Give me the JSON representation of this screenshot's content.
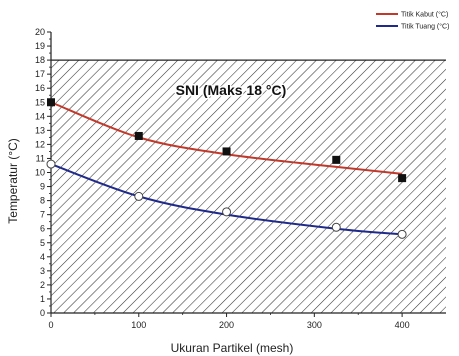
{
  "chart_data": {
    "type": "scatter",
    "xlabel": "Ukuran Partikel (mesh)",
    "ylabel": "Temperatur (°C)",
    "xlim": [
      0,
      450
    ],
    "ylim": [
      0,
      20
    ],
    "x_ticks": [
      "0",
      "100",
      "200",
      "300",
      "400"
    ],
    "y_ticks": [
      "0",
      "1",
      "2",
      "3",
      "4",
      "5",
      "6",
      "7",
      "8",
      "9",
      "10",
      "11",
      "12",
      "13",
      "14",
      "15",
      "16",
      "17",
      "18",
      "19",
      "20"
    ],
    "annotation": {
      "text": "SNI (Maks 18 °C)",
      "x": 205,
      "y": 15.5
    },
    "sni_region": {
      "ymax": 18,
      "pattern": "diagonal-hatch"
    },
    "grid": false,
    "legend": "top-right",
    "series": [
      {
        "name": "Titik Kabut (°C)",
        "color": "#c0392b",
        "marker": "filled-square",
        "x": [
          0,
          100,
          200,
          325,
          400
        ],
        "y": [
          15.0,
          12.6,
          11.5,
          10.9,
          9.6
        ],
        "fit_y": [
          15.0,
          12.5,
          11.3,
          10.4,
          9.9
        ]
      },
      {
        "name": "Titik Tuang (°C)",
        "color": "#1f2a8a",
        "marker": "open-circle",
        "x": [
          0,
          100,
          200,
          325,
          400
        ],
        "y": [
          10.6,
          8.3,
          7.2,
          6.1,
          5.6
        ],
        "fit_y": [
          10.6,
          8.3,
          7.0,
          6.0,
          5.6
        ]
      }
    ]
  }
}
